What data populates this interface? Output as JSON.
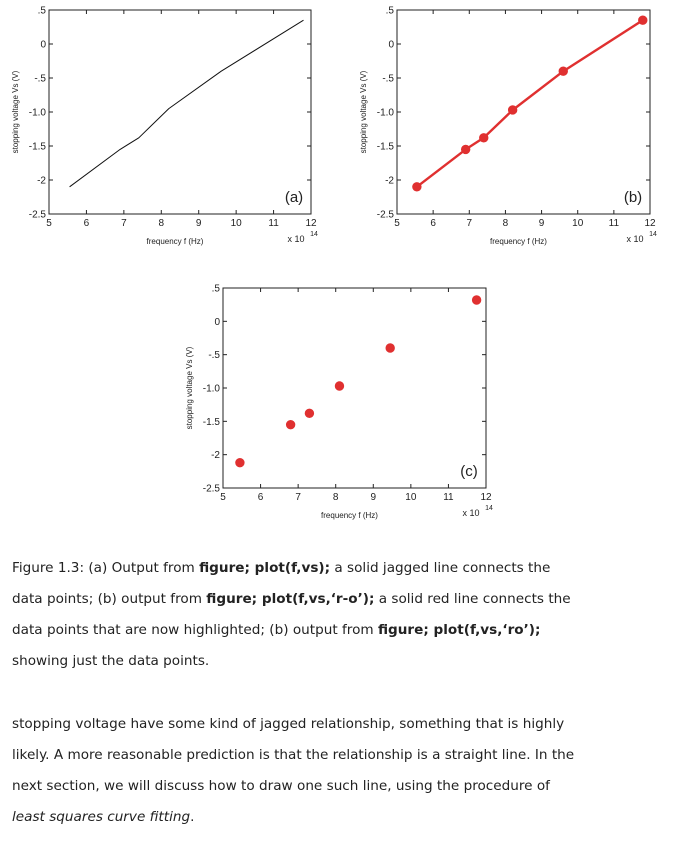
{
  "figure": {
    "caption": {
      "prefix": "Figure 1.3: (a) Output from ",
      "cmd_a": "figure; plot(f,vs);",
      "mid_a": " a solid jagged line connects the data points; (b) output from ",
      "cmd_b": "figure; plot(f,vs,‘r-o’);",
      "mid_b": " a solid red line connects the data points that are now highlighted; (b) output from ",
      "cmd_c": "figure; plot(f,vs,‘ro’);",
      "suffix": " showing just the data points."
    }
  },
  "body": {
    "text_before": "stopping voltage have some kind of jagged relationship, something that is highly likely. A more reasonable prediction is that the relationship is a straight line. In the next section, we will discuss how to draw one such line, using the procedure of ",
    "emphasis": "least squares curve fitting",
    "text_after": "."
  },
  "chart_data": [
    {
      "type": "line",
      "panel_label": "(a)",
      "style": "solid black line, no markers",
      "x": [
        5.55,
        6.9,
        7.4,
        8.2,
        9.6,
        11.8
      ],
      "y": [
        -2.1,
        -1.55,
        -1.38,
        -0.95,
        -0.4,
        0.35
      ],
      "xlabel": "frequency f (Hz)",
      "ylabel": "stopping voltage Vs (V)",
      "xlim": [
        5,
        12
      ],
      "ylim": [
        -2.5,
        0.5
      ],
      "xticks": [
        "5",
        "6",
        "7",
        "8",
        "9",
        "10",
        "11",
        "12"
      ],
      "yticks": [
        "-2.5",
        "-2",
        "-1.5",
        "-1.0",
        "-.5",
        "0",
        ".5"
      ],
      "x_multiplier": "x 10",
      "x_exponent": "14",
      "line_color": "#111111"
    },
    {
      "type": "line",
      "panel_label": "(b)",
      "style": "solid red line with circle markers",
      "x": [
        5.55,
        6.9,
        7.4,
        8.2,
        9.6,
        11.8
      ],
      "y": [
        -2.1,
        -1.55,
        -1.38,
        -0.97,
        -0.4,
        0.35
      ],
      "xlabel": "frequency f (Hz)",
      "ylabel": "stopping voltage Vs (V)",
      "xlim": [
        5,
        12
      ],
      "ylim": [
        -2.5,
        0.5
      ],
      "xticks": [
        "5",
        "6",
        "7",
        "8",
        "9",
        "10",
        "11",
        "12"
      ],
      "yticks": [
        "-2.5",
        "-2",
        "-1.5",
        "-1.0",
        "-.5",
        "0",
        ".5"
      ],
      "x_multiplier": "x 10",
      "x_exponent": "14",
      "line_color": "#e03030"
    },
    {
      "type": "scatter",
      "panel_label": "(c)",
      "style": "red circle markers only",
      "x": [
        5.45,
        6.8,
        7.3,
        8.1,
        9.45,
        11.75
      ],
      "y": [
        -2.12,
        -1.55,
        -1.38,
        -0.97,
        -0.4,
        0.32
      ],
      "xlabel": "frequency f (Hz)",
      "ylabel": "stopping voltage Vs (V)",
      "xlim": [
        5,
        12
      ],
      "ylim": [
        -2.5,
        0.5
      ],
      "xticks": [
        "5",
        "6",
        "7",
        "8",
        "9",
        "10",
        "11",
        "12"
      ],
      "yticks": [
        "-2.5",
        "-2",
        "-1.5",
        "-1.0",
        "-.5",
        "0",
        ".5"
      ],
      "x_multiplier": "x 10",
      "x_exponent": "14",
      "line_color": "#e03030"
    }
  ]
}
